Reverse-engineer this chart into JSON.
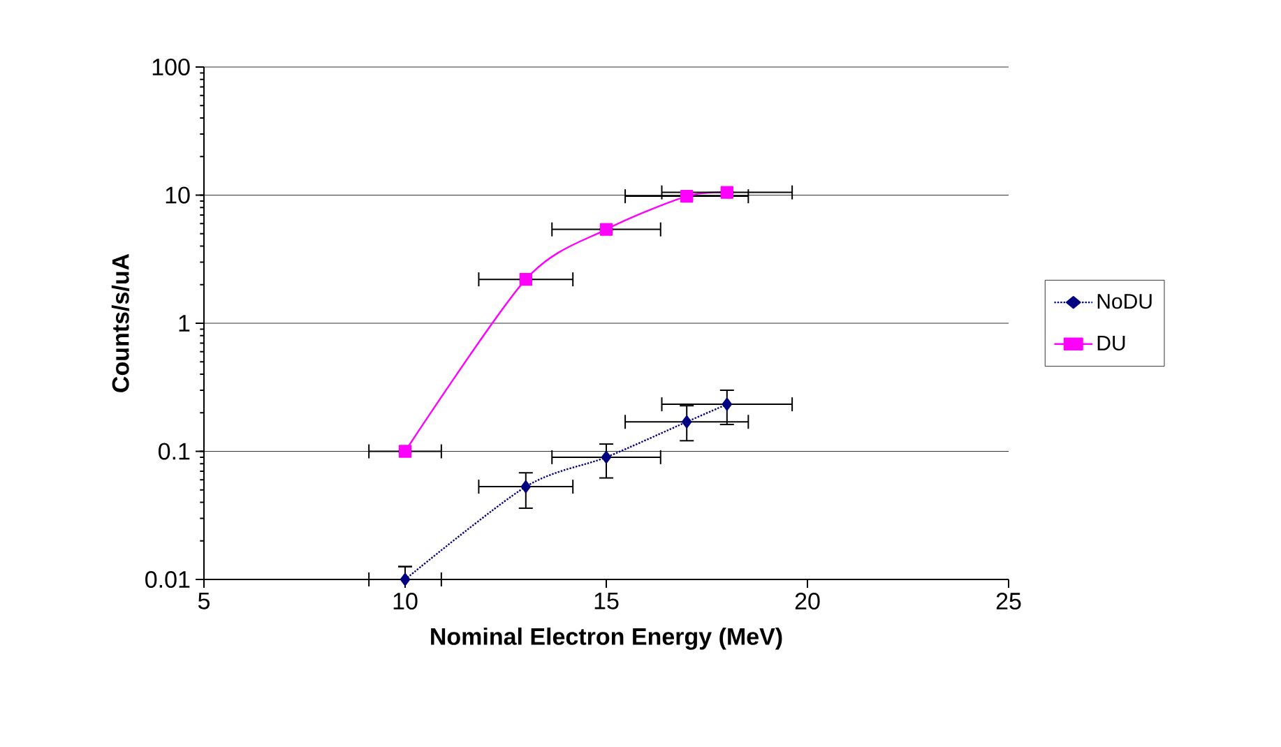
{
  "chart_data": {
    "type": "line",
    "xlabel": "Nominal Electron Energy (MeV)",
    "ylabel": "Counts/s/uA",
    "xlim": [
      5,
      25
    ],
    "xticks": [
      5,
      10,
      15,
      20,
      25
    ],
    "ylim": [
      0.01,
      100
    ],
    "yticks": [
      0.01,
      0.1,
      1,
      10,
      100
    ],
    "log": "y",
    "grid": "y",
    "legend": "right",
    "series": [
      {
        "name": "NoDU",
        "color": "#000080",
        "marker": "diamond",
        "line_style": "dotted",
        "x": [
          10,
          13,
          15,
          17,
          18
        ],
        "values": [
          0.01,
          0.053,
          0.09,
          0.17,
          0.233
        ],
        "errors": [
          [
            0.01,
            0.0126
          ],
          [
            0.036,
            0.068
          ],
          [
            0.062,
            0.114
          ],
          [
            0.121,
            0.227
          ],
          [
            0.162,
            0.3
          ]
        ],
        "xerrors": [
          0.9,
          1.17,
          1.35,
          1.53,
          1.62
        ]
      },
      {
        "name": "DU",
        "color": "#ff00ff",
        "marker": "square",
        "line_style": "solid",
        "x": [
          10,
          13,
          15,
          17,
          18
        ],
        "values": [
          0.1,
          2.2,
          5.4,
          9.8,
          10.5
        ],
        "xerrors": [
          0.9,
          1.17,
          1.35,
          1.53,
          1.62
        ]
      }
    ]
  }
}
